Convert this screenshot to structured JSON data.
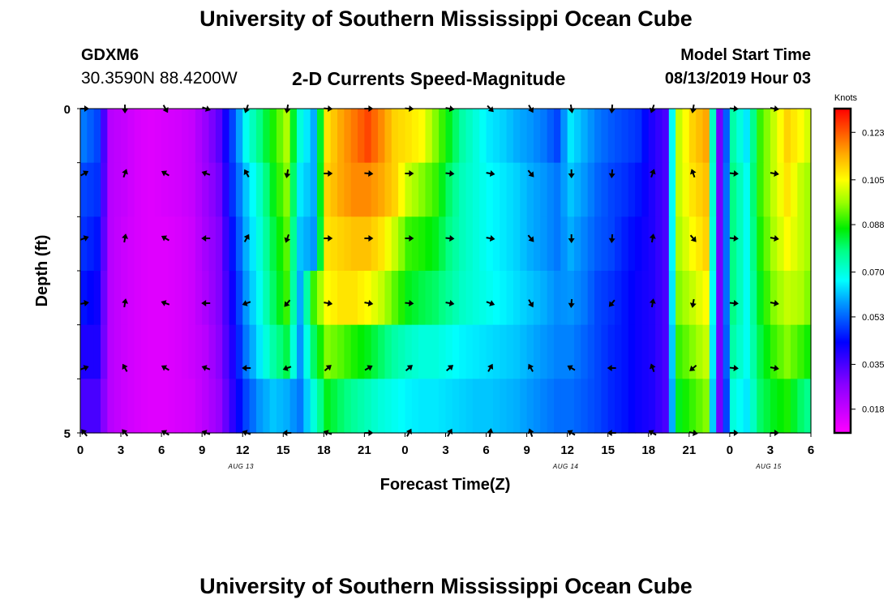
{
  "header": {
    "title": "University of Southern Mississippi Ocean Cube",
    "station": "GDXM6",
    "coords": "30.3590N 88.4200W",
    "subtitle": "2-D Currents Speed-Magnitude",
    "start_label": "Model Start Time",
    "start_value": "08/13/2019 Hour 03"
  },
  "footer": {
    "title": "University of Southern Mississippi Ocean Cube"
  },
  "chart_data": {
    "type": "heatmap",
    "title": "2-D Currents Speed-Magnitude",
    "xlabel": "Forecast Time(Z)",
    "ylabel": "Depth (ft)",
    "x_tick_labels": [
      "0",
      "3",
      "6",
      "9",
      "12",
      "15",
      "18",
      "21",
      "0",
      "3",
      "6",
      "9",
      "12",
      "15",
      "18",
      "21",
      "0",
      "3",
      "6"
    ],
    "x_range_hours": [
      0,
      54
    ],
    "y_tick_labels": [
      "0",
      "5"
    ],
    "y_range": [
      0,
      5
    ],
    "date_labels": [
      {
        "label": "AUG 13",
        "hour": 12
      },
      {
        "label": "AUG 14",
        "hour": 36
      },
      {
        "label": "AUG 15",
        "hour": 51
      }
    ],
    "colorbar": {
      "unit": "Knots",
      "min": 0.009,
      "max": 0.132,
      "ticks": [
        "0.123",
        "0.105",
        "0.088",
        "0.070",
        "0.053",
        "0.035",
        "0.018"
      ],
      "tick_values": [
        0.123,
        0.105,
        0.088,
        0.07,
        0.053,
        0.035,
        0.018
      ]
    },
    "speed_columns": {
      "hours": [
        0,
        1,
        2,
        3,
        4,
        5,
        6,
        7,
        8,
        9,
        10,
        11,
        12,
        13,
        14,
        15,
        16,
        17,
        18,
        19,
        20,
        21,
        22,
        23,
        24,
        25,
        26,
        27,
        28,
        29,
        30,
        31,
        32,
        33,
        34,
        35,
        36,
        37,
        38,
        39,
        40,
        41,
        42,
        43,
        44,
        45,
        46,
        47,
        48,
        49,
        50,
        51,
        52,
        53,
        54
      ],
      "rows": [
        [
          0.055,
          0.05,
          0.02,
          0.018,
          0.015,
          0.014,
          0.015,
          0.016,
          0.018,
          0.025,
          0.033,
          0.05,
          0.068,
          0.078,
          0.088,
          0.098,
          0.07,
          0.06,
          0.108,
          0.115,
          0.12,
          0.125,
          0.118,
          0.11,
          0.108,
          0.105,
          0.095,
          0.085,
          0.075,
          0.07,
          0.065,
          0.063,
          0.06,
          0.058,
          0.055,
          0.05,
          0.065,
          0.06,
          0.055,
          0.052,
          0.05,
          0.048,
          0.04,
          0.035,
          0.1,
          0.11,
          0.115,
          0.03,
          0.075,
          0.065,
          0.09,
          0.1,
          0.11,
          0.105,
          0.098
        ],
        [
          0.05,
          0.048,
          0.02,
          0.018,
          0.015,
          0.014,
          0.015,
          0.016,
          0.018,
          0.024,
          0.03,
          0.048,
          0.062,
          0.072,
          0.085,
          0.095,
          0.065,
          0.06,
          0.11,
          0.115,
          0.118,
          0.118,
          0.115,
          0.11,
          0.1,
          0.095,
          0.09,
          0.08,
          0.073,
          0.07,
          0.067,
          0.065,
          0.063,
          0.06,
          0.058,
          0.055,
          0.062,
          0.058,
          0.053,
          0.05,
          0.048,
          0.045,
          0.04,
          0.035,
          0.1,
          0.108,
          0.112,
          0.03,
          0.078,
          0.068,
          0.09,
          0.1,
          0.108,
          0.1,
          0.095
        ],
        [
          0.048,
          0.045,
          0.02,
          0.017,
          0.015,
          0.014,
          0.014,
          0.015,
          0.017,
          0.023,
          0.028,
          0.045,
          0.06,
          0.07,
          0.082,
          0.092,
          0.062,
          0.058,
          0.108,
          0.11,
          0.112,
          0.112,
          0.108,
          0.1,
          0.09,
          0.088,
          0.085,
          0.078,
          0.073,
          0.07,
          0.067,
          0.065,
          0.063,
          0.06,
          0.058,
          0.055,
          0.06,
          0.056,
          0.052,
          0.05,
          0.046,
          0.043,
          0.04,
          0.035,
          0.098,
          0.105,
          0.11,
          0.03,
          0.078,
          0.068,
          0.088,
          0.098,
          0.105,
          0.1,
          0.095
        ],
        [
          0.045,
          0.042,
          0.02,
          0.017,
          0.015,
          0.014,
          0.014,
          0.015,
          0.017,
          0.022,
          0.028,
          0.042,
          0.058,
          0.068,
          0.08,
          0.09,
          0.06,
          0.09,
          0.105,
          0.108,
          0.108,
          0.105,
          0.1,
          0.092,
          0.085,
          0.082,
          0.08,
          0.076,
          0.072,
          0.07,
          0.068,
          0.066,
          0.064,
          0.062,
          0.06,
          0.057,
          0.058,
          0.055,
          0.05,
          0.048,
          0.045,
          0.042,
          0.04,
          0.035,
          0.095,
          0.1,
          0.105,
          0.03,
          0.078,
          0.068,
          0.085,
          0.095,
          0.1,
          0.098,
          0.092
        ],
        [
          0.04,
          0.04,
          0.02,
          0.017,
          0.015,
          0.014,
          0.014,
          0.015,
          0.017,
          0.02,
          0.027,
          0.04,
          0.055,
          0.065,
          0.075,
          0.082,
          0.058,
          0.08,
          0.095,
          0.092,
          0.088,
          0.085,
          0.08,
          0.075,
          0.072,
          0.07,
          0.07,
          0.068,
          0.066,
          0.065,
          0.064,
          0.063,
          0.062,
          0.06,
          0.058,
          0.056,
          0.056,
          0.053,
          0.05,
          0.047,
          0.045,
          0.042,
          0.04,
          0.035,
          0.09,
          0.095,
          0.1,
          0.03,
          0.075,
          0.068,
          0.082,
          0.09,
          0.095,
          0.09,
          0.085
        ],
        [
          0.035,
          0.035,
          0.02,
          0.017,
          0.015,
          0.014,
          0.014,
          0.015,
          0.016,
          0.02,
          0.025,
          0.038,
          0.05,
          0.058,
          0.062,
          0.06,
          0.055,
          0.07,
          0.085,
          0.08,
          0.076,
          0.073,
          0.07,
          0.068,
          0.066,
          0.065,
          0.065,
          0.064,
          0.063,
          0.062,
          0.062,
          0.061,
          0.06,
          0.058,
          0.056,
          0.054,
          0.054,
          0.052,
          0.05,
          0.047,
          0.045,
          0.042,
          0.04,
          0.035,
          0.085,
          0.09,
          0.095,
          0.03,
          0.07,
          0.065,
          0.08,
          0.085,
          0.088,
          0.08,
          0.075
        ]
      ]
    },
    "vector_rows_depth_ft": [
      0,
      1,
      2,
      3,
      4,
      5
    ],
    "vector_hours": [
      0,
      3,
      6,
      9,
      12,
      15,
      18,
      21,
      24,
      27,
      30,
      33,
      36,
      39,
      42,
      45,
      48,
      51
    ],
    "vector_directions_deg": [
      [
        90,
        180,
        150,
        110,
        200,
        190,
        95,
        90,
        95,
        100,
        135,
        150,
        170,
        185,
        200,
        190,
        95,
        100
      ],
      [
        60,
        20,
        300,
        290,
        330,
        190,
        90,
        95,
        90,
        95,
        100,
        140,
        180,
        185,
        20,
        340,
        95,
        100
      ],
      [
        70,
        10,
        300,
        270,
        30,
        200,
        90,
        90,
        90,
        95,
        100,
        140,
        180,
        185,
        10,
        140,
        95,
        100
      ],
      [
        80,
        10,
        290,
        270,
        250,
        220,
        100,
        100,
        95,
        100,
        110,
        150,
        185,
        220,
        10,
        190,
        95,
        100
      ],
      [
        70,
        330,
        300,
        290,
        270,
        250,
        50,
        60,
        50,
        50,
        30,
        330,
        300,
        270,
        340,
        230,
        95,
        100
      ],
      [
        320,
        320,
        300,
        290,
        290,
        270,
        290,
        90,
        30,
        30,
        10,
        340,
        300,
        270,
        300,
        100,
        90,
        90
      ]
    ]
  }
}
